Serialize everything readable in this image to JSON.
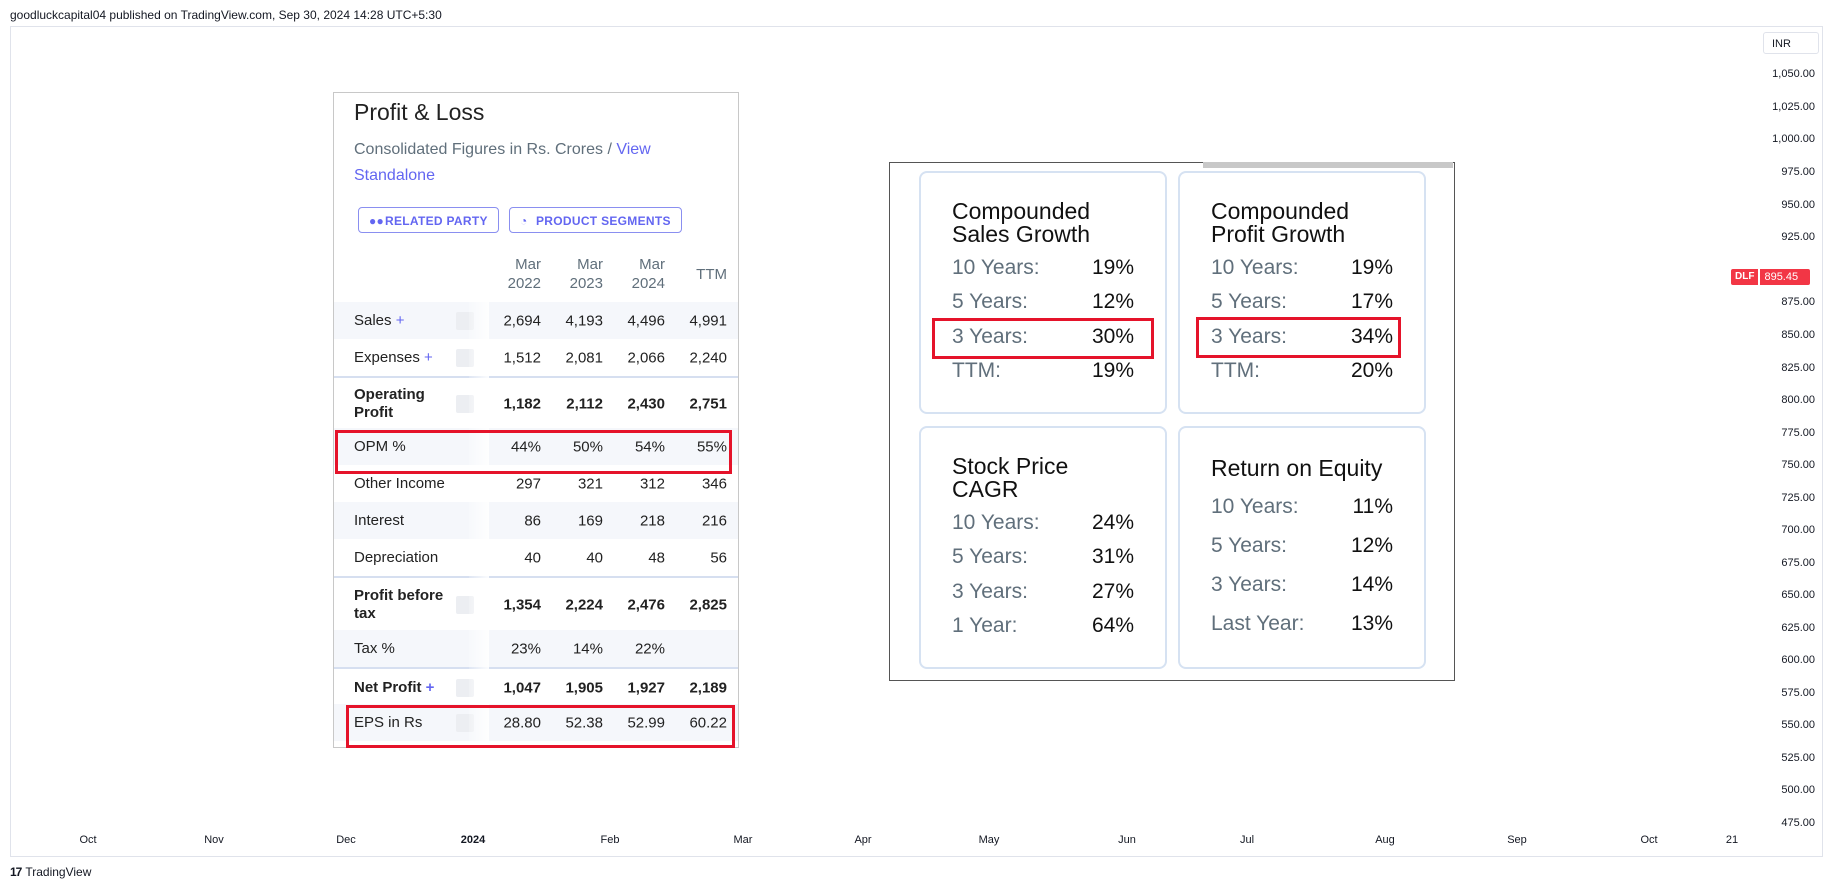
{
  "header": {
    "published_line": "goodluckcapital04 published on TradingView.com, Sep 30, 2024 14:28 UTC+5:30"
  },
  "price_axis": {
    "currency": "INR",
    "ticks": [
      "1,050.00",
      "1,025.00",
      "1,000.00",
      "975.00",
      "950.00",
      "925.00",
      "875.00",
      "850.00",
      "825.00",
      "800.00",
      "775.00",
      "750.00",
      "725.00",
      "700.00",
      "675.00",
      "650.00",
      "625.00",
      "600.00",
      "575.00",
      "550.00",
      "525.00",
      "500.00",
      "475.00"
    ],
    "symbol": "DLF",
    "last_price": "895.45",
    "badge_color": "#f23645"
  },
  "time_axis": {
    "ticks": [
      "Oct",
      "Nov",
      "Dec",
      "2024",
      "Feb",
      "Mar",
      "Apr",
      "May",
      "Jun",
      "Jul",
      "Aug",
      "Sep",
      "Oct",
      "21"
    ]
  },
  "footer": {
    "brand": "TradingView",
    "logo_text": "17"
  },
  "profit_loss": {
    "title": "Profit & Loss",
    "subtitle": "Consolidated Figures in Rs. Crores /",
    "subtitle_link": "View Standalone",
    "buttons": [
      {
        "label": "RELATED PARTY",
        "icon": "users-icon"
      },
      {
        "label": "PRODUCT SEGMENTS",
        "icon": "pie-chart-icon"
      }
    ],
    "columns": [
      {
        "l1": "Mar",
        "l2": "2022"
      },
      {
        "l1": "Mar",
        "l2": "2023"
      },
      {
        "l1": "Mar",
        "l2": "2024"
      },
      {
        "l1": "",
        "l2": "TTM"
      }
    ],
    "rows": [
      {
        "label": "Sales",
        "plus": "+",
        "values": [
          "2,694",
          "4,193",
          "4,496",
          "4,991"
        ]
      },
      {
        "label": "Expenses",
        "plus": "+",
        "values": [
          "1,512",
          "2,081",
          "2,066",
          "2,240"
        ]
      },
      {
        "label": "Operating Profit",
        "plus": "",
        "values": [
          "1,182",
          "2,112",
          "2,430",
          "2,751"
        ]
      },
      {
        "label": "OPM %",
        "plus": "",
        "values": [
          "44%",
          "50%",
          "54%",
          "55%"
        ]
      },
      {
        "label": "Other Income",
        "plus": "",
        "values": [
          "297",
          "321",
          "312",
          "346"
        ]
      },
      {
        "label": "Interest",
        "plus": "",
        "values": [
          "86",
          "169",
          "218",
          "216"
        ]
      },
      {
        "label": "Depreciation",
        "plus": "",
        "values": [
          "40",
          "40",
          "48",
          "56"
        ]
      },
      {
        "label": "Profit before tax",
        "plus": "",
        "values": [
          "1,354",
          "2,224",
          "2,476",
          "2,825"
        ]
      },
      {
        "label": "Tax %",
        "plus": "",
        "values": [
          "23%",
          "14%",
          "22%",
          ""
        ]
      },
      {
        "label": "Net Profit",
        "plus": "+",
        "values": [
          "1,047",
          "1,905",
          "1,927",
          "2,189"
        ]
      },
      {
        "label": "EPS in Rs",
        "plus": "",
        "values": [
          "28.80",
          "52.38",
          "52.99",
          "60.22"
        ]
      }
    ]
  },
  "growth": {
    "cards": [
      {
        "title": "Compounded Sales Growth",
        "items": [
          {
            "k": "10 Years:",
            "v": "19%"
          },
          {
            "k": "5 Years:",
            "v": "12%"
          },
          {
            "k": "3 Years:",
            "v": "30%"
          },
          {
            "k": "TTM:",
            "v": "19%"
          }
        ]
      },
      {
        "title": "Compounded Profit Growth",
        "items": [
          {
            "k": "10 Years:",
            "v": "19%"
          },
          {
            "k": "5 Years:",
            "v": "17%"
          },
          {
            "k": "3 Years:",
            "v": "34%"
          },
          {
            "k": "TTM:",
            "v": "20%"
          }
        ]
      },
      {
        "title": "Stock Price CAGR",
        "items": [
          {
            "k": "10 Years:",
            "v": "24%"
          },
          {
            "k": "5 Years:",
            "v": "31%"
          },
          {
            "k": "3 Years:",
            "v": "27%"
          },
          {
            "k": "1 Year:",
            "v": "64%"
          }
        ]
      },
      {
        "title": "Return on Equity",
        "items": [
          {
            "k": "10 Years:",
            "v": "11%"
          },
          {
            "k": "5 Years:",
            "v": "12%"
          },
          {
            "k": "3 Years:",
            "v": "14%"
          },
          {
            "k": "Last Year:",
            "v": "13%"
          }
        ]
      }
    ]
  },
  "highlight_color": "#e5132a"
}
